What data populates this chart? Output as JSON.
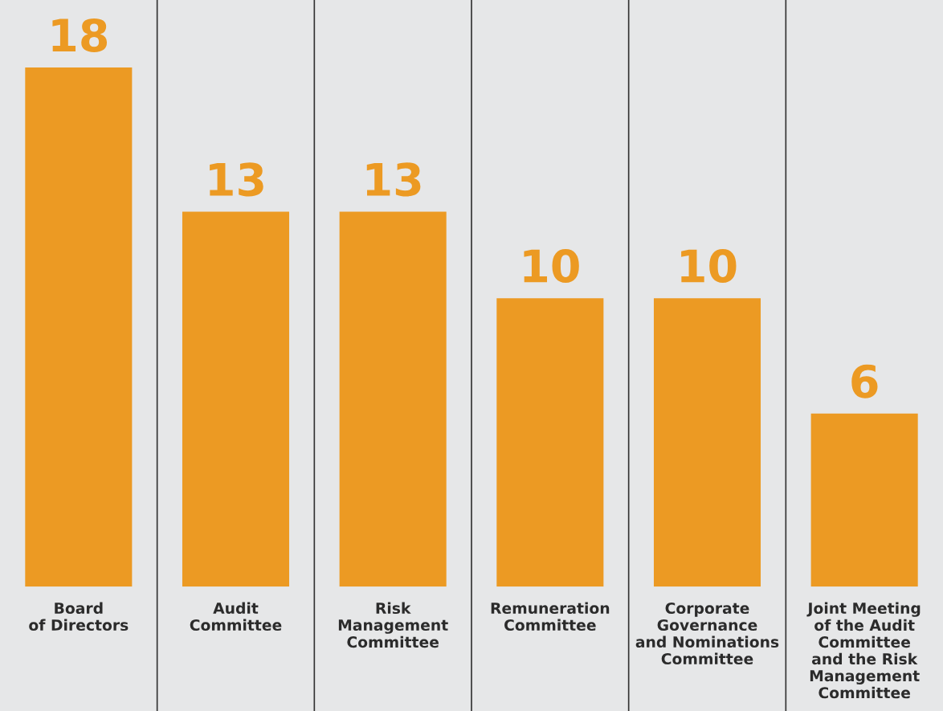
{
  "chart_data": {
    "type": "bar",
    "categories": [
      "Board\nof Directors",
      "Audit\nCommittee",
      "Risk\nManagement\nCommittee",
      "Remuneration\nCommittee",
      "Corporate\nGovernance\nand Nominations\nCommittee",
      "Joint Meeting\nof the Audit\nCommittee\nand the Risk\nManagement\nCommittee"
    ],
    "values": [
      18,
      13,
      13,
      10,
      10,
      6
    ],
    "color": "#ec9a23",
    "data_labels": true,
    "grid": false,
    "legend": false
  }
}
